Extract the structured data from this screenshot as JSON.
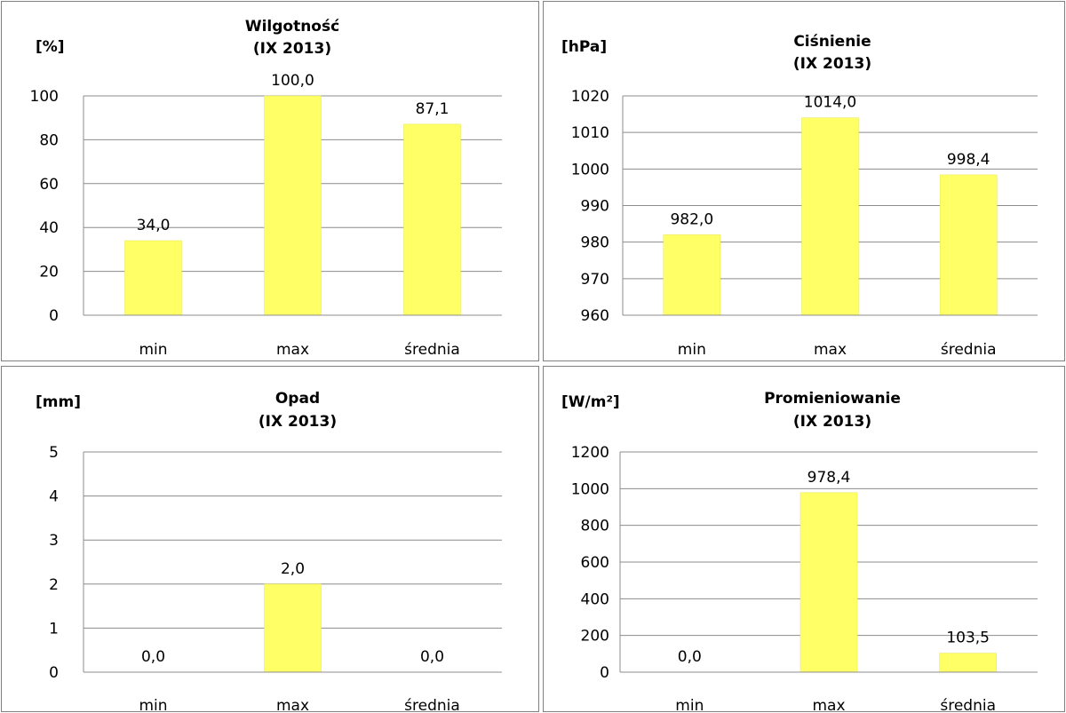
{
  "chart_data": [
    {
      "type": "bar",
      "title": [
        "Wilgotność",
        "(IX 2013)"
      ],
      "ylabel": "[%]",
      "categories": [
        "min",
        "max",
        "średnia"
      ],
      "values": [
        34.0,
        100.0,
        87.1
      ],
      "data_labels": [
        "34,0",
        "100,0",
        "87,1"
      ],
      "ylim": [
        0,
        100
      ],
      "yticks": [
        0,
        20,
        40,
        60,
        80,
        100
      ],
      "grid": true,
      "bar_color": "#FFFF66"
    },
    {
      "type": "bar",
      "title": [
        "Ciśnienie",
        "(IX 2013)"
      ],
      "ylabel": "[hPa]",
      "categories": [
        "min",
        "max",
        "średnia"
      ],
      "values": [
        982.0,
        1014.0,
        998.4
      ],
      "data_labels": [
        "982,0",
        "1014,0",
        "998,4"
      ],
      "ylim": [
        960,
        1020
      ],
      "yticks": [
        960,
        970,
        980,
        990,
        1000,
        1010,
        1020
      ],
      "grid": true,
      "bar_color": "#FFFF66"
    },
    {
      "type": "bar",
      "title": [
        "Opad",
        "(IX 2013)"
      ],
      "ylabel": "[mm]",
      "categories": [
        "min",
        "max",
        "średnia"
      ],
      "values": [
        0.0,
        2.0,
        0.0
      ],
      "data_labels": [
        "0,0",
        "2,0",
        "0,0"
      ],
      "ylim": [
        0,
        5
      ],
      "yticks": [
        0,
        1,
        2,
        3,
        4,
        5
      ],
      "grid": true,
      "bar_color": "#FFFF66"
    },
    {
      "type": "bar",
      "title": [
        "Promieniowanie",
        "(IX 2013)"
      ],
      "ylabel": "[W/m²]",
      "categories": [
        "min",
        "max",
        "średnia"
      ],
      "values": [
        0.0,
        978.4,
        103.5
      ],
      "data_labels": [
        "0,0",
        "978,4",
        "103,5"
      ],
      "ylim": [
        0,
        1200
      ],
      "yticks": [
        0,
        200,
        400,
        600,
        800,
        1000,
        1200
      ],
      "grid": true,
      "bar_color": "#FFFF66"
    }
  ]
}
